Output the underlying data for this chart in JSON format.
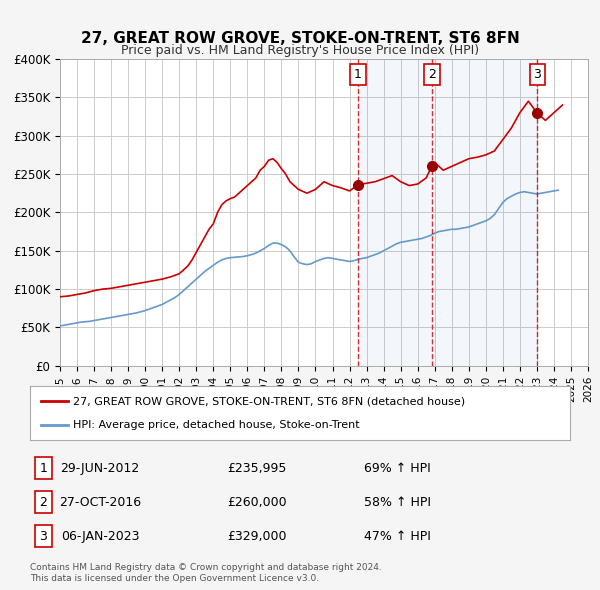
{
  "title": "27, GREAT ROW GROVE, STOKE-ON-TRENT, ST6 8FN",
  "subtitle": "Price paid vs. HM Land Registry's House Price Index (HPI)",
  "ylabel": "",
  "xlabel": "",
  "ylim": [
    0,
    400000
  ],
  "yticks": [
    0,
    50000,
    100000,
    150000,
    200000,
    250000,
    300000,
    350000,
    400000
  ],
  "ytick_labels": [
    "£0",
    "£50K",
    "£100K",
    "£150K",
    "£200K",
    "£250K",
    "£300K",
    "£350K",
    "£400K"
  ],
  "xlim_start": 1995.0,
  "xlim_end": 2026.0,
  "hpi_color": "#6699cc",
  "price_color": "#cc0000",
  "sale_marker_color": "#990000",
  "vline_color": "#cc0000",
  "grid_color": "#cccccc",
  "bg_color": "#f5f5f5",
  "plot_bg_color": "#ffffff",
  "legend_border_color": "#aaaaaa",
  "sale_label_bg": "#ffffff",
  "sale_label_border": "#cc0000",
  "transaction_label": "27, GREAT ROW GROVE, STOKE-ON-TRENT, ST6 8FN (detached house)",
  "hpi_label": "HPI: Average price, detached house, Stoke-on-Trent",
  "sales": [
    {
      "num": 1,
      "date_str": "29-JUN-2012",
      "price": 235995,
      "pct": "69%",
      "x": 2012.5
    },
    {
      "num": 2,
      "date_str": "27-OCT-2016",
      "price": 260000,
      "pct": "58%",
      "x": 2016.83
    },
    {
      "num": 3,
      "date_str": "06-JAN-2023",
      "price": 329000,
      "pct": "47%",
      "x": 2023.03
    }
  ],
  "footer": "Contains HM Land Registry data © Crown copyright and database right 2024.\nThis data is licensed under the Open Government Licence v3.0.",
  "hpi_data_x": [
    1995.0,
    1995.25,
    1995.5,
    1995.75,
    1996.0,
    1996.25,
    1996.5,
    1996.75,
    1997.0,
    1997.25,
    1997.5,
    1997.75,
    1998.0,
    1998.25,
    1998.5,
    1998.75,
    1999.0,
    1999.25,
    1999.5,
    1999.75,
    2000.0,
    2000.25,
    2000.5,
    2000.75,
    2001.0,
    2001.25,
    2001.5,
    2001.75,
    2002.0,
    2002.25,
    2002.5,
    2002.75,
    2003.0,
    2003.25,
    2003.5,
    2003.75,
    2004.0,
    2004.25,
    2004.5,
    2004.75,
    2005.0,
    2005.25,
    2005.5,
    2005.75,
    2006.0,
    2006.25,
    2006.5,
    2006.75,
    2007.0,
    2007.25,
    2007.5,
    2007.75,
    2008.0,
    2008.25,
    2008.5,
    2008.75,
    2009.0,
    2009.25,
    2009.5,
    2009.75,
    2010.0,
    2010.25,
    2010.5,
    2010.75,
    2011.0,
    2011.25,
    2011.5,
    2011.75,
    2012.0,
    2012.25,
    2012.5,
    2012.75,
    2013.0,
    2013.25,
    2013.5,
    2013.75,
    2014.0,
    2014.25,
    2014.5,
    2014.75,
    2015.0,
    2015.25,
    2015.5,
    2015.75,
    2016.0,
    2016.25,
    2016.5,
    2016.75,
    2017.0,
    2017.25,
    2017.5,
    2017.75,
    2018.0,
    2018.25,
    2018.5,
    2018.75,
    2019.0,
    2019.25,
    2019.5,
    2019.75,
    2020.0,
    2020.25,
    2020.5,
    2020.75,
    2021.0,
    2021.25,
    2021.5,
    2021.75,
    2022.0,
    2022.25,
    2022.5,
    2022.75,
    2023.0,
    2023.25,
    2023.5,
    2023.75,
    2024.0,
    2024.25
  ],
  "hpi_data_y": [
    52000,
    53000,
    54000,
    55000,
    56000,
    57000,
    57500,
    58000,
    59000,
    60000,
    61000,
    62000,
    63000,
    64000,
    65000,
    66000,
    67000,
    68000,
    69000,
    70500,
    72000,
    74000,
    76000,
    78000,
    80000,
    83000,
    86000,
    89000,
    93000,
    98000,
    103000,
    108000,
    113000,
    118000,
    123000,
    127000,
    131000,
    135000,
    138000,
    140000,
    141000,
    141500,
    142000,
    142500,
    143500,
    145000,
    147000,
    150000,
    153000,
    157000,
    160000,
    160000,
    158000,
    155000,
    150000,
    142000,
    135000,
    133000,
    132000,
    133000,
    136000,
    138000,
    140000,
    141000,
    140000,
    139000,
    138000,
    137000,
    136000,
    137000,
    139000,
    140000,
    141000,
    143000,
    145000,
    147000,
    150000,
    153000,
    156000,
    159000,
    161000,
    162000,
    163000,
    164000,
    165000,
    166000,
    168000,
    170000,
    173000,
    175000,
    176000,
    177000,
    178000,
    178000,
    179000,
    180000,
    181000,
    183000,
    185000,
    187000,
    189000,
    192000,
    197000,
    205000,
    213000,
    218000,
    221000,
    224000,
    226000,
    227000,
    226000,
    225000,
    224000,
    225000,
    226000,
    227000,
    228000,
    229000
  ],
  "price_data_x": [
    1995.0,
    1995.5,
    1996.0,
    1996.5,
    1997.0,
    1997.25,
    1997.5,
    1997.75,
    1998.0,
    1998.25,
    1998.5,
    1998.75,
    1999.0,
    1999.25,
    1999.5,
    1999.75,
    2000.0,
    2000.25,
    2000.5,
    2000.75,
    2001.0,
    2001.5,
    2002.0,
    2002.25,
    2002.5,
    2002.75,
    2003.0,
    2003.25,
    2003.5,
    2003.75,
    2004.0,
    2004.25,
    2004.5,
    2004.75,
    2005.0,
    2005.25,
    2005.5,
    2005.75,
    2006.0,
    2006.25,
    2006.5,
    2006.75,
    2007.0,
    2007.25,
    2007.5,
    2007.75,
    2008.0,
    2008.25,
    2008.5,
    2009.0,
    2009.5,
    2010.0,
    2010.5,
    2011.0,
    2011.5,
    2012.0,
    2012.5,
    2013.0,
    2013.5,
    2014.0,
    2014.5,
    2015.0,
    2015.5,
    2016.0,
    2016.5,
    2016.83,
    2017.0,
    2017.5,
    2018.0,
    2018.5,
    2019.0,
    2019.5,
    2020.0,
    2020.5,
    2021.0,
    2021.5,
    2022.0,
    2022.5,
    2023.03,
    2023.5,
    2024.0,
    2024.5
  ],
  "price_data_y": [
    90000,
    91000,
    93000,
    95000,
    98000,
    99000,
    100000,
    100500,
    101000,
    102000,
    103000,
    104000,
    105000,
    106000,
    107000,
    108000,
    109000,
    110000,
    111000,
    112000,
    113000,
    116000,
    120000,
    125000,
    130000,
    138000,
    148000,
    158000,
    168000,
    178000,
    185000,
    200000,
    210000,
    215000,
    218000,
    220000,
    225000,
    230000,
    235000,
    240000,
    245000,
    255000,
    260000,
    268000,
    270000,
    265000,
    257000,
    250000,
    240000,
    230000,
    225000,
    230000,
    240000,
    235000,
    232000,
    228000,
    235995,
    238000,
    240000,
    244000,
    248000,
    240000,
    235000,
    237000,
    245000,
    260000,
    265000,
    255000,
    260000,
    265000,
    270000,
    272000,
    275000,
    280000,
    295000,
    310000,
    330000,
    345000,
    329000,
    320000,
    330000,
    340000
  ]
}
